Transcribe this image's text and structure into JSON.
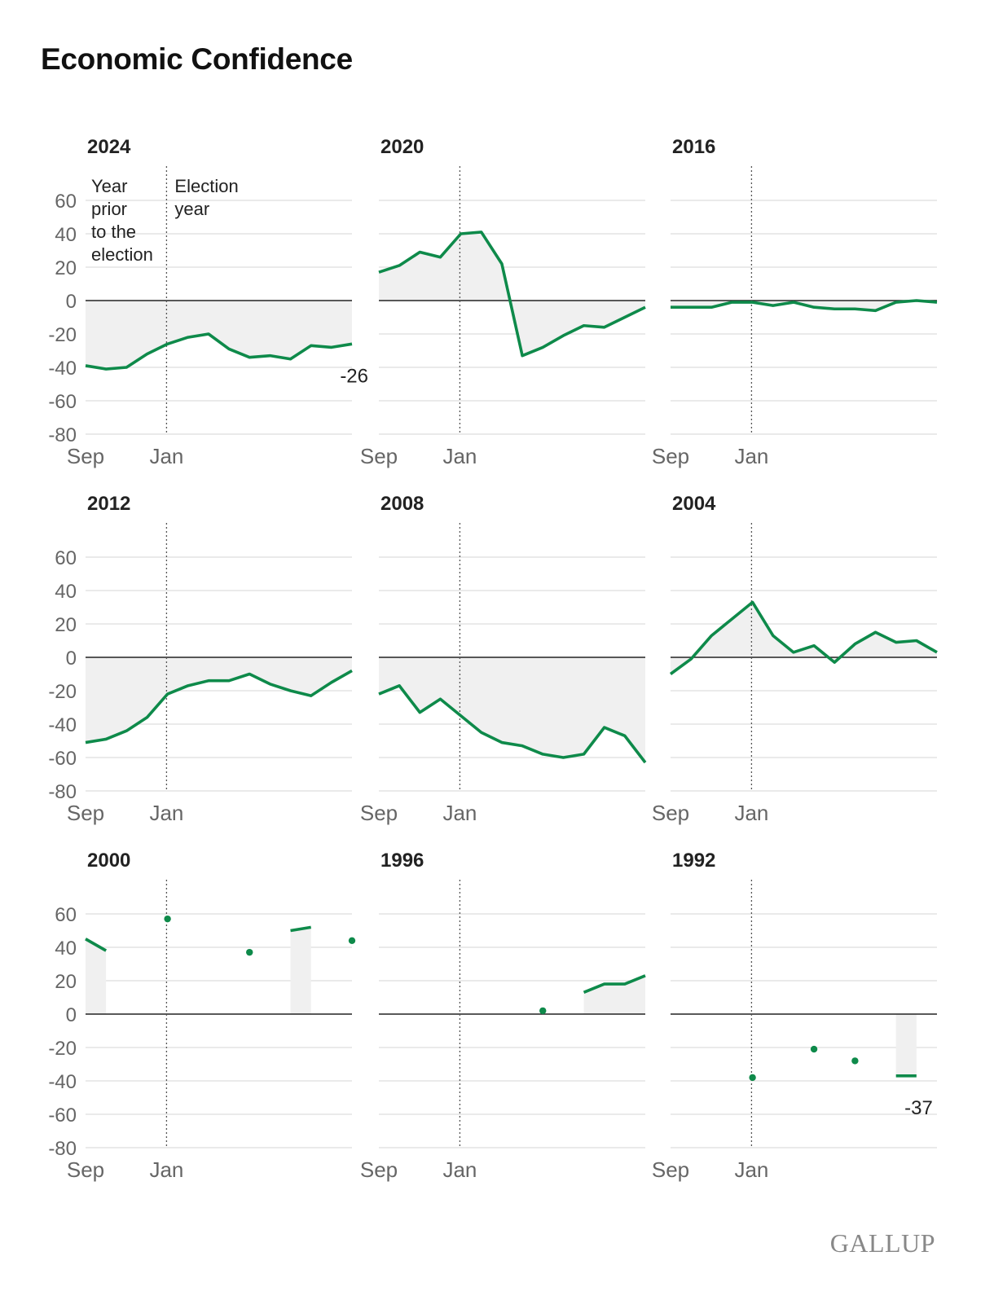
{
  "title": "Economic Confidence",
  "brand": "GALLUP",
  "colors": {
    "line": "#0e8a4a",
    "area": "#f0f0f0",
    "grid": "#dddddd",
    "zero": "#222222"
  },
  "chart_data": [
    {
      "type": "line",
      "title": "2024",
      "ylim": [
        -80,
        60
      ],
      "yticks": [
        60,
        40,
        20,
        0,
        -20,
        -40,
        -60,
        -80
      ],
      "xticks": [
        "Sep",
        "Jan"
      ],
      "x_range": [
        0,
        13
      ],
      "annotations": {
        "before": "Year prior to the election",
        "after": "Election year",
        "end_label": "-26"
      },
      "x": [
        0,
        1,
        2,
        3,
        4,
        5,
        6,
        7,
        8,
        9,
        10,
        11,
        12,
        13
      ],
      "values": [
        -39,
        -41,
        -40,
        -32,
        -26,
        -22,
        -20,
        -29,
        -34,
        -33,
        -35,
        -27,
        -28,
        -26
      ]
    },
    {
      "type": "line",
      "title": "2020",
      "ylim": [
        -80,
        60
      ],
      "xticks": [
        "Sep",
        "Jan"
      ],
      "x_range": [
        0,
        13
      ],
      "x": [
        0,
        1,
        2,
        3,
        4,
        5,
        6,
        7,
        8,
        9,
        10,
        11,
        12,
        13
      ],
      "values": [
        17,
        21,
        29,
        26,
        40,
        41,
        22,
        -33,
        -28,
        -21,
        -15,
        -16,
        -10,
        -4
      ]
    },
    {
      "type": "line",
      "title": "2016",
      "ylim": [
        -80,
        60
      ],
      "xticks": [
        "Sep",
        "Jan"
      ],
      "x_range": [
        0,
        13
      ],
      "x": [
        0,
        1,
        2,
        3,
        4,
        5,
        6,
        7,
        8,
        9,
        10,
        11,
        12,
        13
      ],
      "values": [
        -4,
        -4,
        -4,
        -1,
        -1,
        -3,
        -1,
        -4,
        -5,
        -5,
        -6,
        -1,
        0,
        -1
      ]
    },
    {
      "type": "line",
      "title": "2012",
      "ylim": [
        -80,
        60
      ],
      "xticks": [
        "Sep",
        "Jan"
      ],
      "x_range": [
        0,
        13
      ],
      "x": [
        0,
        1,
        2,
        3,
        4,
        5,
        6,
        7,
        8,
        9,
        10,
        11,
        12,
        13
      ],
      "values": [
        -51,
        -49,
        -44,
        -36,
        -22,
        -17,
        -14,
        -14,
        -10,
        -16,
        -20,
        -23,
        -15,
        -8
      ]
    },
    {
      "type": "line",
      "title": "2008",
      "ylim": [
        -80,
        60
      ],
      "xticks": [
        "Sep",
        "Jan"
      ],
      "x_range": [
        0,
        13
      ],
      "x": [
        0,
        1,
        2,
        3,
        4,
        5,
        6,
        7,
        8,
        9,
        10,
        11,
        12,
        13
      ],
      "values": [
        -22,
        -17,
        -33,
        -25,
        -35,
        -45,
        -51,
        -53,
        -58,
        -60,
        -58,
        -42,
        -47,
        -63
      ]
    },
    {
      "type": "line",
      "title": "2004",
      "ylim": [
        -80,
        60
      ],
      "xticks": [
        "Sep",
        "Jan"
      ],
      "x_range": [
        0,
        13
      ],
      "x": [
        0,
        1,
        2,
        3,
        4,
        5,
        6,
        7,
        8,
        9,
        10,
        11,
        12,
        13
      ],
      "values": [
        -10,
        -1,
        13,
        23,
        33,
        13,
        3,
        7,
        -3,
        8,
        15,
        9,
        10,
        3
      ]
    },
    {
      "type": "line",
      "title": "2000",
      "ylim": [
        -80,
        60
      ],
      "xticks": [
        "Sep",
        "Jan"
      ],
      "x_range": [
        0,
        13
      ],
      "x": [
        0,
        1,
        4,
        8,
        10,
        11,
        13
      ],
      "values": [
        45,
        38,
        57,
        37,
        50,
        52,
        44
      ]
    },
    {
      "type": "line",
      "title": "1996",
      "ylim": [
        -80,
        60
      ],
      "xticks": [
        "Sep",
        "Jan"
      ],
      "x_range": [
        0,
        13
      ],
      "x": [
        8,
        10,
        11,
        12,
        13
      ],
      "values": [
        2,
        13,
        18,
        18,
        23
      ]
    },
    {
      "type": "line",
      "title": "1992",
      "ylim": [
        -80,
        60
      ],
      "xticks": [
        "Sep",
        "Jan"
      ],
      "x_range": [
        0,
        13
      ],
      "annotations": {
        "end_label": "-37"
      },
      "x": [
        4,
        7,
        9,
        11,
        12
      ],
      "values": [
        -38,
        -21,
        -28,
        -37,
        -37
      ]
    }
  ]
}
